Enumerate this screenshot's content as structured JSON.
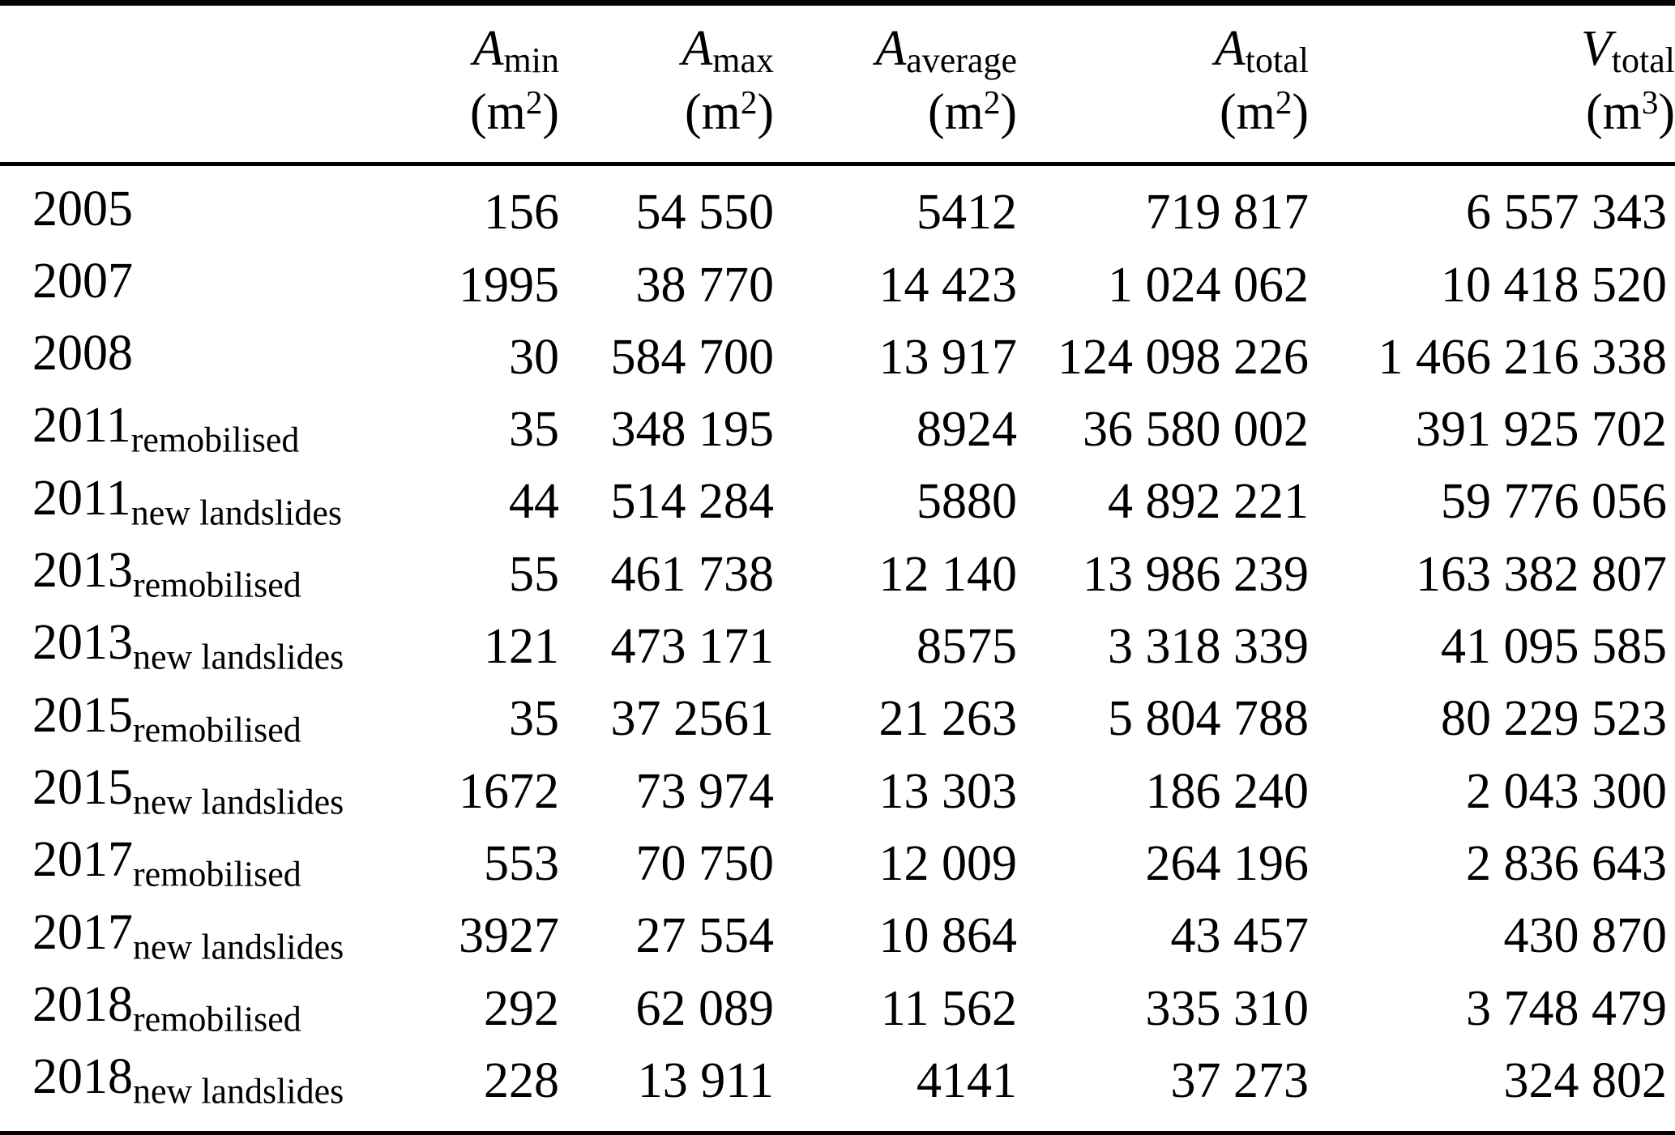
{
  "table": {
    "header": {
      "columns": [
        {
          "symbol": "A",
          "subscript": "min",
          "unit_open": "(m",
          "unit_exp": "2",
          "unit_close": ")"
        },
        {
          "symbol": "A",
          "subscript": "max",
          "unit_open": "(m",
          "unit_exp": "2",
          "unit_close": ")"
        },
        {
          "symbol": "A",
          "subscript": "average",
          "unit_open": "(m",
          "unit_exp": "2",
          "unit_close": ")"
        },
        {
          "symbol": "A",
          "subscript": "total",
          "unit_open": "(m",
          "unit_exp": "2",
          "unit_close": ")"
        },
        {
          "symbol": "V",
          "subscript": "total",
          "unit_open": "(m",
          "unit_exp": "3",
          "unit_close": ")"
        }
      ]
    },
    "rows": [
      {
        "year": "2005",
        "sublabel": "",
        "values": [
          "156",
          "54 550",
          "5412",
          "719 817",
          "6 557 343"
        ]
      },
      {
        "year": "2007",
        "sublabel": "",
        "values": [
          "1995",
          "38 770",
          "14 423",
          "1 024 062",
          "10 418 520"
        ]
      },
      {
        "year": "2008",
        "sublabel": "",
        "values": [
          "30",
          "584 700",
          "13 917",
          "124 098 226",
          "1 466 216 338"
        ]
      },
      {
        "year": "2011",
        "sublabel": "remobilised",
        "values": [
          "35",
          "348 195",
          "8924",
          "36 580 002",
          "391 925 702"
        ]
      },
      {
        "year": "2011",
        "sublabel": "new landslides",
        "values": [
          "44",
          "514 284",
          "5880",
          "4 892 221",
          "59 776 056"
        ]
      },
      {
        "year": "2013",
        "sublabel": "remobilised",
        "values": [
          "55",
          "461 738",
          "12 140",
          "13 986 239",
          "163 382 807"
        ]
      },
      {
        "year": "2013",
        "sublabel": "new landslides",
        "values": [
          "121",
          "473 171",
          "8575",
          "3 318 339",
          "41 095 585"
        ]
      },
      {
        "year": "2015",
        "sublabel": "remobilised",
        "values": [
          "35",
          "37 2561",
          "21 263",
          "5 804 788",
          "80 229 523"
        ]
      },
      {
        "year": "2015",
        "sublabel": "new landslides",
        "values": [
          "1672",
          "73 974",
          "13 303",
          "186 240",
          "2 043 300"
        ]
      },
      {
        "year": "2017",
        "sublabel": "remobilised",
        "values": [
          "553",
          "70 750",
          "12 009",
          "264 196",
          "2 836 643"
        ]
      },
      {
        "year": "2017",
        "sublabel": "new landslides",
        "values": [
          "3927",
          "27 554",
          "10 864",
          "43 457",
          "430 870"
        ]
      },
      {
        "year": "2018",
        "sublabel": "remobilised",
        "values": [
          "292",
          "62 089",
          "11 562",
          "335 310",
          "3 748 479"
        ]
      },
      {
        "year": "2018",
        "sublabel": "new landslides",
        "values": [
          "228",
          "13 911",
          "4141",
          "37 273",
          "324 802"
        ]
      }
    ]
  }
}
